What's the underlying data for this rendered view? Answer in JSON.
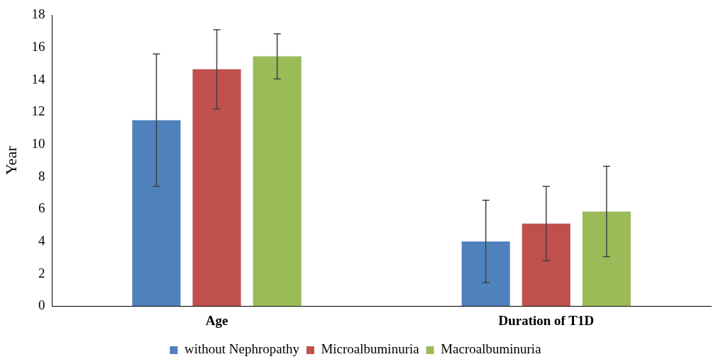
{
  "chart_data": {
    "type": "bar",
    "ylabel": "Year",
    "categories": [
      "Age",
      "Duration of T1D"
    ],
    "series": [
      {
        "name": "without Nephropathy",
        "color": "#4f81bd",
        "values": [
          11.5,
          4.0
        ],
        "errors": [
          4.1,
          2.55
        ]
      },
      {
        "name": "Microalbuminuria",
        "color": "#c0504d",
        "values": [
          14.65,
          5.1
        ],
        "errors": [
          2.45,
          2.3
        ]
      },
      {
        "name": "Macroalbuminuria",
        "color": "#9bbb59",
        "values": [
          15.45,
          5.85
        ],
        "errors": [
          1.4,
          2.8
        ]
      }
    ],
    "ylim": [
      0,
      18
    ],
    "yticks": [
      0,
      2,
      4,
      6,
      8,
      10,
      12,
      14,
      16,
      18
    ],
    "grid": false,
    "legend": "bottom"
  }
}
